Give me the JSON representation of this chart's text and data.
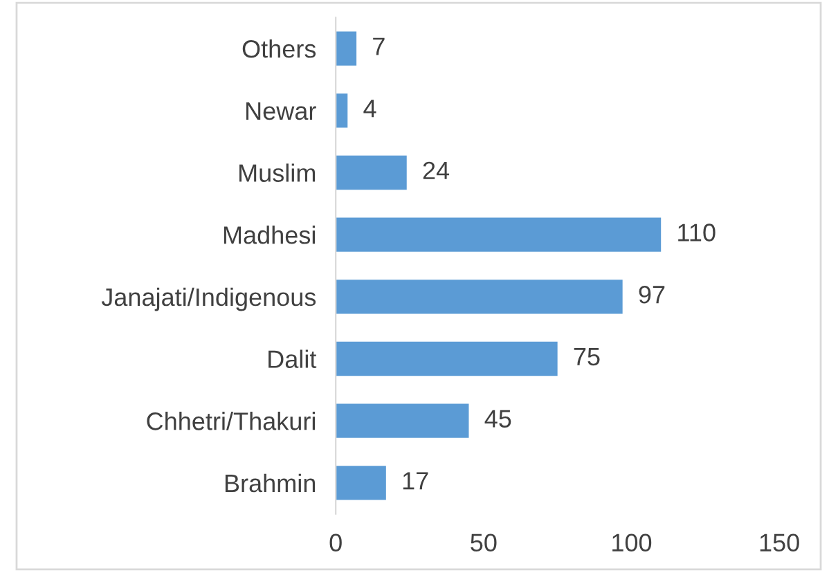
{
  "chart_data": {
    "type": "bar",
    "orientation": "horizontal",
    "categories": [
      "Others",
      "Newar",
      "Muslim",
      "Madhesi",
      "Janajati/Indigenous",
      "Dalit",
      "Chhetri/Thakuri",
      "Brahmin"
    ],
    "values": [
      7,
      4,
      24,
      110,
      97,
      75,
      45,
      17
    ],
    "color": "#5b9bd5",
    "xlim": [
      0,
      150
    ],
    "xticks": [
      0,
      50,
      100,
      150
    ],
    "data_labels": true,
    "grid": false,
    "legend": false
  }
}
